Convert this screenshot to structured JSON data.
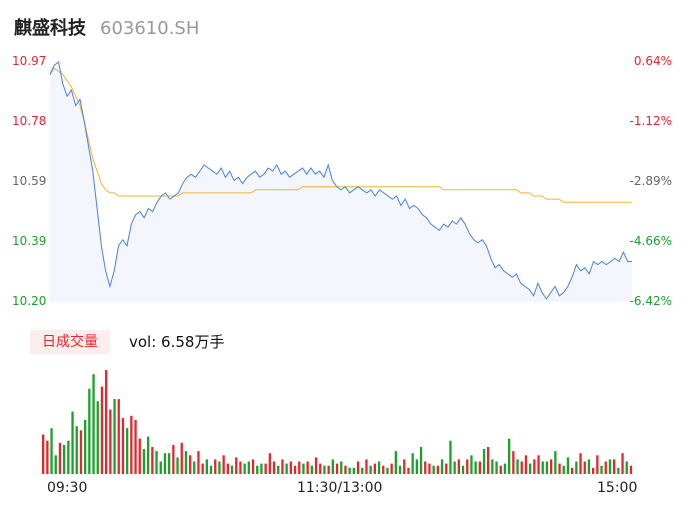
{
  "header": {
    "name": "麒盛科技",
    "code": "603610.SH"
  },
  "colors": {
    "up": "#e5262d",
    "down": "#1aa12a",
    "price_line": "#4a7fdc",
    "avg_line": "#f2b431",
    "neutral": "#666666"
  },
  "y_labels_left": [
    "10.97",
    "10.78",
    "10.59",
    "10.39",
    "10.20"
  ],
  "y_labels_right": [
    "0.64%",
    "-1.12%",
    "-2.89%",
    "-4.66%",
    "-6.42%"
  ],
  "volume_badge": "日成交量",
  "volume_text": "vol: 6.58万手",
  "time_labels": [
    "09:30",
    "11:30/13:00",
    "15:00"
  ],
  "chart_data": [
    {
      "type": "line",
      "ylim": [
        10.2,
        10.97
      ],
      "x_range": [
        "09:30",
        "15:00"
      ],
      "series": [],
      "price": [
        10.93,
        10.96,
        10.97,
        10.9,
        10.86,
        10.88,
        10.83,
        10.85,
        10.78,
        10.7,
        10.62,
        10.5,
        10.38,
        10.3,
        10.25,
        10.3,
        10.38,
        10.4,
        10.38,
        10.45,
        10.48,
        10.49,
        10.47,
        10.5,
        10.49,
        10.52,
        10.54,
        10.55,
        10.53,
        10.54,
        10.55,
        10.58,
        10.6,
        10.61,
        10.6,
        10.62,
        10.64,
        10.63,
        10.62,
        10.61,
        10.63,
        10.6,
        10.62,
        10.59,
        10.6,
        10.58,
        10.6,
        10.61,
        10.62,
        10.6,
        10.61,
        10.63,
        10.62,
        10.64,
        10.61,
        10.62,
        10.6,
        10.61,
        10.62,
        10.63,
        10.61,
        10.63,
        10.61,
        10.62,
        10.6,
        10.64,
        10.59,
        10.57,
        10.56,
        10.57,
        10.55,
        10.56,
        10.57,
        10.56,
        10.55,
        10.56,
        10.54,
        10.56,
        10.55,
        10.54,
        10.53,
        10.54,
        10.51,
        10.53,
        10.5,
        10.51,
        10.5,
        10.48,
        10.47,
        10.45,
        10.44,
        10.43,
        10.45,
        10.44,
        10.46,
        10.45,
        10.47,
        10.45,
        10.42,
        10.4,
        10.39,
        10.4,
        10.38,
        10.34,
        10.31,
        10.32,
        10.3,
        10.29,
        10.28,
        10.29,
        10.26,
        10.25,
        10.24,
        10.22,
        10.26,
        10.23,
        10.21,
        10.23,
        10.25,
        10.22,
        10.23,
        10.25,
        10.28,
        10.32,
        10.3,
        10.31,
        10.29,
        10.33,
        10.32,
        10.33,
        10.32,
        10.33,
        10.34,
        10.33,
        10.36,
        10.33,
        10.33
      ],
      "avg_price": [
        10.93,
        10.95,
        10.94,
        10.93,
        10.91,
        10.89,
        10.86,
        10.83,
        10.78,
        10.72,
        10.66,
        10.62,
        10.58,
        10.56,
        10.55,
        10.55,
        10.54,
        10.54,
        10.54,
        10.54,
        10.54,
        10.54,
        10.54,
        10.54,
        10.54,
        10.54,
        10.54,
        10.54,
        10.54,
        10.54,
        10.54,
        10.55,
        10.55,
        10.55,
        10.55,
        10.55,
        10.55,
        10.55,
        10.55,
        10.55,
        10.55,
        10.55,
        10.55,
        10.55,
        10.55,
        10.55,
        10.55,
        10.55,
        10.56,
        10.56,
        10.56,
        10.56,
        10.56,
        10.56,
        10.56,
        10.56,
        10.56,
        10.56,
        10.56,
        10.57,
        10.57,
        10.57,
        10.57,
        10.57,
        10.57,
        10.57,
        10.57,
        10.57,
        10.57,
        10.57,
        10.57,
        10.57,
        10.57,
        10.57,
        10.57,
        10.57,
        10.57,
        10.57,
        10.57,
        10.57,
        10.57,
        10.57,
        10.57,
        10.57,
        10.57,
        10.57,
        10.57,
        10.57,
        10.57,
        10.57,
        10.57,
        10.57,
        10.56,
        10.56,
        10.56,
        10.56,
        10.56,
        10.56,
        10.56,
        10.56,
        10.56,
        10.56,
        10.56,
        10.56,
        10.56,
        10.56,
        10.56,
        10.56,
        10.56,
        10.56,
        10.55,
        10.55,
        10.55,
        10.54,
        10.54,
        10.54,
        10.53,
        10.53,
        10.53,
        10.53,
        10.52,
        10.52,
        10.52,
        10.52,
        10.52,
        10.52,
        10.52,
        10.52,
        10.52,
        10.52,
        10.52,
        10.52,
        10.52,
        10.52,
        10.52,
        10.52,
        10.52
      ]
    },
    {
      "type": "bar",
      "series": [],
      "values": [
        38,
        32,
        44,
        18,
        30,
        28,
        32,
        60,
        46,
        42,
        52,
        82,
        96,
        70,
        84,
        100,
        62,
        72,
        72,
        54,
        44,
        56,
        52,
        34,
        24,
        36,
        26,
        22,
        12,
        20,
        20,
        28,
        16,
        30,
        22,
        18,
        12,
        22,
        10,
        14,
        8,
        14,
        12,
        18,
        10,
        8,
        16,
        12,
        10,
        12,
        14,
        8,
        10,
        10,
        20,
        12,
        8,
        14,
        10,
        12,
        8,
        12,
        10,
        12,
        8,
        16,
        10,
        8,
        8,
        14,
        10,
        12,
        8,
        6,
        6,
        12,
        6,
        14,
        8,
        10,
        12,
        8,
        6,
        10,
        22,
        8,
        14,
        6,
        20,
        14,
        26,
        12,
        10,
        8,
        8,
        14,
        10,
        32,
        12,
        14,
        8,
        14,
        18,
        12,
        12,
        24,
        26,
        14,
        12,
        8,
        10,
        34,
        22,
        14,
        12,
        18,
        10,
        14,
        18,
        12,
        12,
        14,
        22,
        10,
        8,
        16,
        6,
        12,
        20,
        12,
        14,
        6,
        18,
        8,
        12,
        14,
        14,
        6,
        20,
        12,
        8
      ],
      "colors": [
        "up",
        "up",
        "down",
        "down",
        "up",
        "down",
        "down",
        "down",
        "down",
        "up",
        "down",
        "down",
        "down",
        "down",
        "up",
        "up",
        "up",
        "down",
        "up",
        "up",
        "down",
        "up",
        "up",
        "up",
        "down",
        "down",
        "up",
        "down",
        "down",
        "down",
        "down",
        "up",
        "down",
        "up",
        "down",
        "up",
        "down",
        "up",
        "up",
        "down",
        "down",
        "up",
        "down",
        "up",
        "up",
        "down",
        "up",
        "up",
        "down",
        "down",
        "up",
        "down",
        "down",
        "up",
        "up",
        "up",
        "down",
        "up",
        "down",
        "up",
        "up",
        "up",
        "down",
        "up",
        "down",
        "up",
        "up",
        "down",
        "up",
        "down",
        "up",
        "down",
        "up",
        "down",
        "down",
        "up",
        "down",
        "up",
        "down",
        "up",
        "down",
        "up",
        "down",
        "up",
        "down",
        "down",
        "up",
        "up",
        "down",
        "down",
        "down",
        "up",
        "up",
        "down",
        "up",
        "down",
        "up",
        "down",
        "down",
        "up",
        "down",
        "up",
        "down",
        "down",
        "up",
        "down",
        "up",
        "down",
        "down",
        "up",
        "down",
        "down",
        "up",
        "down",
        "up",
        "up",
        "down",
        "up",
        "up",
        "down",
        "down",
        "up",
        "down",
        "up",
        "down",
        "down",
        "up",
        "down",
        "up",
        "up",
        "down",
        "up",
        "up",
        "down",
        "up",
        "down",
        "up",
        "down",
        "up",
        "down",
        "up"
      ]
    }
  ]
}
